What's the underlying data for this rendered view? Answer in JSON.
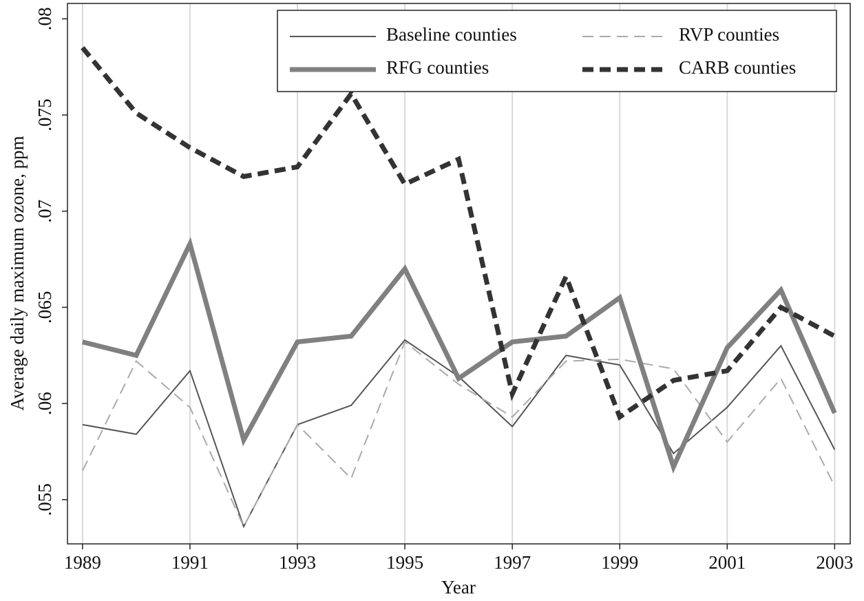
{
  "chart_data": {
    "type": "line",
    "x": [
      1989,
      1990,
      1991,
      1992,
      1993,
      1994,
      1995,
      1996,
      1997,
      1998,
      1999,
      2000,
      2001,
      2002,
      2003
    ],
    "series": [
      {
        "name": "Baseline counties",
        "color": "#555555",
        "values": [
          0.0589,
          0.0584,
          0.0617,
          0.0536,
          0.0589,
          0.0599,
          0.0633,
          0.0614,
          0.0588,
          0.0625,
          0.062,
          0.0574,
          0.0598,
          0.063,
          0.0576
        ]
      },
      {
        "name": "RVP counties",
        "color": "#aaaaaa",
        "values": [
          0.0565,
          0.0622,
          0.0598,
          0.0536,
          0.0589,
          0.0561,
          0.0632,
          0.061,
          0.0593,
          0.0622,
          0.0623,
          0.0618,
          0.058,
          0.0613,
          0.0557
        ]
      },
      {
        "name": "RFG counties",
        "color": "#808080",
        "values": [
          0.0632,
          0.0625,
          0.0683,
          0.0581,
          0.0632,
          0.0635,
          0.067,
          0.0613,
          0.0632,
          0.0635,
          0.0655,
          0.0567,
          0.0629,
          0.0659,
          0.0595
        ]
      },
      {
        "name": "CARB counties",
        "color": "#333333",
        "values": [
          0.0785,
          0.0751,
          0.0733,
          0.0718,
          0.0723,
          0.0761,
          0.0714,
          0.0727,
          0.0605,
          0.0666,
          0.0593,
          0.0612,
          0.0617,
          0.065,
          0.0635
        ]
      }
    ],
    "xlabel": "Year",
    "ylabel": "Average daily maximum ozone, ppm",
    "xlim": [
      1988.72,
      2003.29
    ],
    "ylim": [
      0.0527,
      0.0808
    ],
    "xticks": [
      1989,
      1991,
      1993,
      1995,
      1997,
      1999,
      2001,
      2003
    ],
    "yticks": [
      {
        "value": 0.055,
        "label": ".055"
      },
      {
        "value": 0.06,
        "label": ".06"
      },
      {
        "value": 0.065,
        "label": ".065"
      },
      {
        "value": 0.07,
        "label": ".07"
      },
      {
        "value": 0.075,
        "label": ".075"
      },
      {
        "value": 0.08,
        "label": ".08"
      }
    ],
    "grid": true,
    "legend": "top right"
  }
}
